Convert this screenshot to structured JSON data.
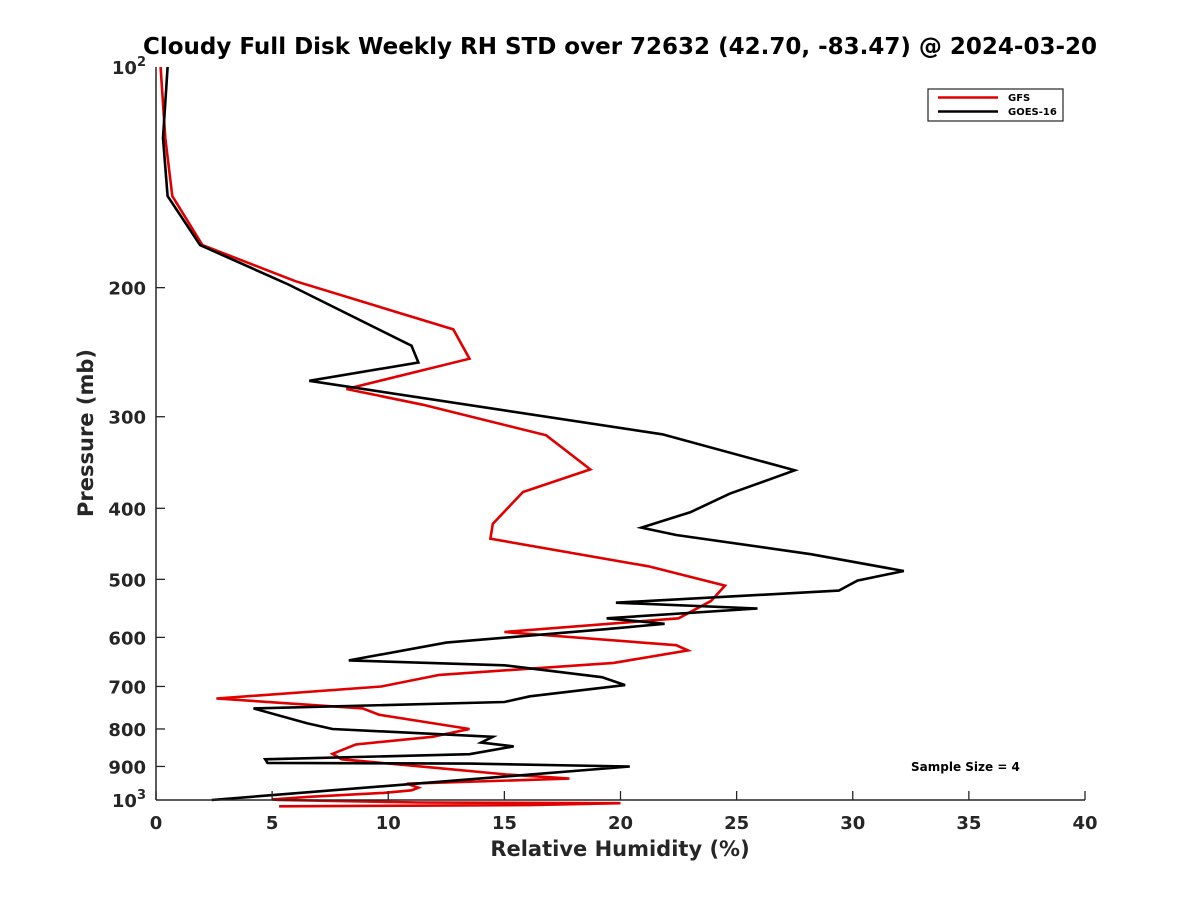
{
  "chart_data": {
    "type": "line",
    "title": "Cloudy Full Disk Weekly RH STD over 72632 (42.70, -83.47) @ 2024-03-20",
    "xlabel": "Relative Humidity (%)",
    "ylabel": "Pressure (mb)",
    "xlim": [
      0,
      40
    ],
    "ylim": [
      100,
      1000
    ],
    "y_scale": "log",
    "y_reversed": true,
    "x_ticks": [
      0,
      5,
      10,
      15,
      20,
      25,
      30,
      35,
      40
    ],
    "x_tick_labels": [
      "0",
      "5",
      "10",
      "15",
      "20",
      "25",
      "30",
      "35",
      "40"
    ],
    "y_ticks": [
      200,
      300,
      400,
      500,
      600,
      700,
      800,
      900
    ],
    "y_tick_labels": [
      "200",
      "300",
      "400",
      "500",
      "600",
      "700",
      "800",
      "900"
    ],
    "y_decade_labels": [
      {
        "value": 100,
        "base": "10",
        "exp": "2"
      },
      {
        "value": 1000,
        "base": "10",
        "exp": "3"
      }
    ],
    "grid": false,
    "legend_position": "top-right",
    "series": [
      {
        "name": "GFS",
        "color": "#e00000",
        "points": [
          [
            0.2,
            100
          ],
          [
            0.4,
            125
          ],
          [
            0.7,
            150
          ],
          [
            2.0,
            175
          ],
          [
            6.0,
            196
          ],
          [
            12.8,
            228
          ],
          [
            13.5,
            250
          ],
          [
            8.2,
            275
          ],
          [
            11.5,
            289
          ],
          [
            16.8,
            318
          ],
          [
            18.7,
            354
          ],
          [
            15.8,
            380
          ],
          [
            14.5,
            420
          ],
          [
            14.4,
            440
          ],
          [
            21.2,
            480
          ],
          [
            24.5,
            510
          ],
          [
            23.9,
            535
          ],
          [
            22.5,
            565
          ],
          [
            15.0,
            590
          ],
          [
            22.4,
            615
          ],
          [
            22.9,
            625
          ],
          [
            19.7,
            650
          ],
          [
            12.2,
            675
          ],
          [
            9.7,
            700
          ],
          [
            2.6,
            727
          ],
          [
            8.9,
            750
          ],
          [
            9.6,
            765
          ],
          [
            13.5,
            800
          ],
          [
            11.9,
            820
          ],
          [
            8.6,
            840
          ],
          [
            7.6,
            865
          ],
          [
            8.0,
            880
          ],
          [
            12.2,
            905
          ],
          [
            15.1,
            923
          ],
          [
            17.8,
            935
          ],
          [
            10.8,
            950
          ],
          [
            11.3,
            962
          ],
          [
            11.0,
            970
          ],
          [
            9.8,
            978
          ],
          [
            6.6,
            990
          ],
          [
            5.0,
            998
          ],
          [
            5.3,
            1000
          ],
          [
            11.3,
            1008
          ],
          [
            20.0,
            1010
          ],
          [
            16.1,
            1016
          ],
          [
            5.3,
            1020
          ]
        ]
      },
      {
        "name": "GOES-16",
        "color": "#000000",
        "points": [
          [
            0.5,
            100
          ],
          [
            0.3,
            125
          ],
          [
            0.5,
            150
          ],
          [
            1.9,
            175
          ],
          [
            5.7,
            198
          ],
          [
            11.0,
            240
          ],
          [
            11.3,
            253
          ],
          [
            6.6,
            268
          ],
          [
            21.8,
            317
          ],
          [
            27.5,
            355
          ],
          [
            24.7,
            382
          ],
          [
            23.0,
            405
          ],
          [
            20.9,
            425
          ],
          [
            22.4,
            435
          ],
          [
            28.2,
            462
          ],
          [
            32.2,
            487
          ],
          [
            30.2,
            502
          ],
          [
            29.4,
            518
          ],
          [
            19.8,
            538
          ],
          [
            25.9,
            548
          ],
          [
            19.4,
            565
          ],
          [
            21.9,
            575
          ],
          [
            19.3,
            585
          ],
          [
            12.5,
            610
          ],
          [
            8.3,
            645
          ],
          [
            15.0,
            655
          ],
          [
            19.2,
            680
          ],
          [
            20.2,
            697
          ],
          [
            16.1,
            722
          ],
          [
            15.0,
            735
          ],
          [
            4.2,
            750
          ],
          [
            6.5,
            786
          ],
          [
            7.6,
            800
          ],
          [
            14.5,
            820
          ],
          [
            14.0,
            835
          ],
          [
            15.4,
            845
          ],
          [
            13.5,
            866
          ],
          [
            4.7,
            880
          ],
          [
            4.8,
            890
          ],
          [
            13.5,
            892
          ],
          [
            20.4,
            900
          ],
          [
            2.4,
            1000
          ]
        ]
      }
    ],
    "annotation": "Sample Size = 4"
  }
}
